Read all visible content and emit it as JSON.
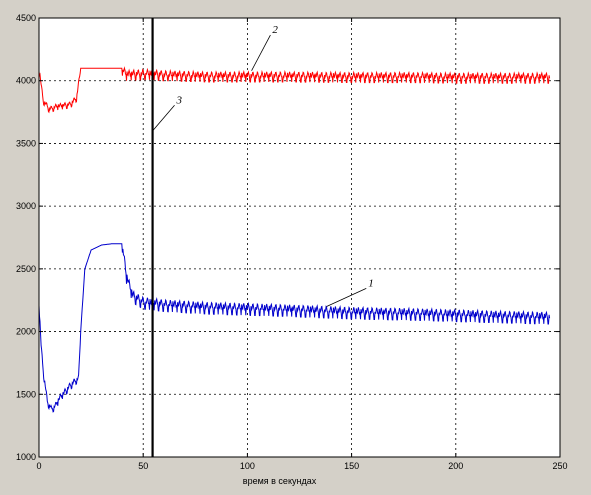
{
  "chart_data": {
    "type": "line",
    "title": "",
    "xlabel": "время в секундах",
    "ylabel": "",
    "xlim": [
      0,
      250
    ],
    "ylim": [
      1000,
      4500
    ],
    "xticks": [
      0,
      50,
      100,
      150,
      200,
      250
    ],
    "yticks": [
      1000,
      1500,
      2000,
      2500,
      3000,
      3500,
      4000,
      4500
    ],
    "grid": true,
    "legend": "none",
    "series": [
      {
        "label": "2",
        "color": "#ff0000",
        "x": [
          0,
          2,
          5,
          8,
          12,
          15,
          18,
          20,
          22,
          30,
          40,
          42,
          50,
          60,
          80,
          100,
          120,
          150,
          180,
          200,
          220,
          245
        ],
        "y": [
          4110,
          3850,
          3780,
          3800,
          3810,
          3820,
          3870,
          4100,
          4100,
          4100,
          4100,
          4060,
          4070,
          4060,
          4050,
          4050,
          4050,
          4045,
          4045,
          4040,
          4040,
          4040
        ],
        "ripple": 60,
        "ripple_start": 40
      },
      {
        "label": "1",
        "color": "#0000cc",
        "x": [
          0,
          1,
          2,
          4,
          6,
          8,
          10,
          15,
          19,
          20,
          22,
          25,
          30,
          35,
          40,
          42,
          45,
          50,
          60,
          80,
          100,
          120,
          150,
          180,
          200,
          220,
          245
        ],
        "y": [
          2250,
          1900,
          1700,
          1450,
          1390,
          1420,
          1480,
          1580,
          1640,
          2000,
          2500,
          2650,
          2690,
          2700,
          2700,
          2450,
          2300,
          2250,
          2230,
          2210,
          2200,
          2190,
          2170,
          2160,
          2150,
          2140,
          2130
        ],
        "ripple": 70,
        "ripple_start": 40
      }
    ],
    "vertical_line": {
      "x": 54.5,
      "label": "3"
    },
    "annotations": [
      {
        "text": "2",
        "series": 0,
        "at_x": 102,
        "at_y": 4080,
        "text_x": 112,
        "text_y": 4380
      },
      {
        "text": "3",
        "series": null,
        "at_x": 54.5,
        "at_y": 3600,
        "text_x": 66,
        "text_y": 3820
      },
      {
        "text": "1",
        "series": 1,
        "at_x": 138,
        "at_y": 2200,
        "text_x": 158,
        "text_y": 2360
      }
    ]
  }
}
